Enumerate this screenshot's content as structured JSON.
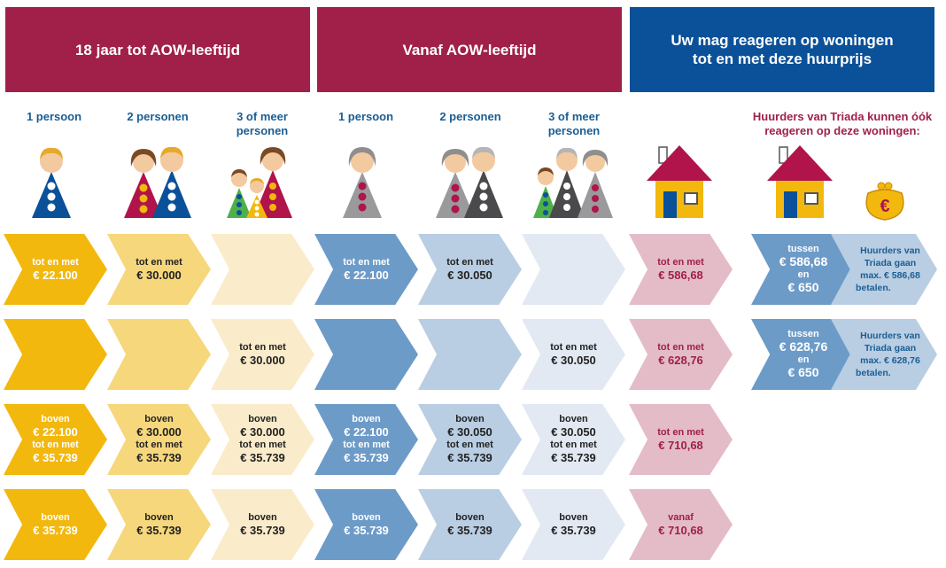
{
  "headers": {
    "group1": "18 jaar tot AOW-leeftijd",
    "group2": "Vanaf AOW-leeftijd",
    "group3_line1": "Uw mag reageren op woningen",
    "group3_line2": "tot en met deze huurprijs"
  },
  "columns": {
    "c0": [
      "1 persoon"
    ],
    "c1": [
      "2 personen"
    ],
    "c2": [
      "3 of meer",
      "personen"
    ],
    "c3": [
      "1 persoon"
    ],
    "c4": [
      "2 personen"
    ],
    "c5": [
      "3 of meer",
      "personen"
    ]
  },
  "triada_note": [
    "Huurders van Triada kunnen óók",
    "reageren op deze woningen:"
  ],
  "icons": {
    "house": "house-icon",
    "purse": "euro-purse-icon",
    "purse_symbol": "€"
  },
  "rows": [
    {
      "cells": [
        {
          "small": "tot en met",
          "big": "€ 22.100"
        },
        {
          "small": "tot en met",
          "big": "€ 30.000"
        },
        {
          "small": "",
          "big": ""
        },
        {
          "small": "tot en met",
          "big": "€ 22.100"
        },
        {
          "small": "tot en met",
          "big": "€ 30.050"
        },
        {
          "small": "",
          "big": ""
        },
        {
          "small": "tot en met",
          "big": "€ 586,68"
        }
      ],
      "extra": {
        "tussen": "tussen",
        "from": "€ 586,68",
        "en": "en",
        "to": "€ 650",
        "note": [
          "Huurders van",
          "Triada gaan",
          "max. € 586,68",
          "betalen."
        ]
      }
    },
    {
      "cells": [
        {
          "small": "",
          "big": ""
        },
        {
          "small": "",
          "big": ""
        },
        {
          "small": "tot en met",
          "big": "€ 30.000"
        },
        {
          "small": "",
          "big": ""
        },
        {
          "small": "",
          "big": ""
        },
        {
          "small": "tot en met",
          "big": "€ 30.050"
        },
        {
          "small": "tot en met",
          "big": "€ 628,76"
        }
      ],
      "extra": {
        "tussen": "tussen",
        "from": "€ 628,76",
        "en": "en",
        "to": "€ 650",
        "note": [
          "Huurders van",
          "Triada gaan",
          "max. € 628,76",
          "betalen."
        ]
      }
    },
    {
      "cells": [
        {
          "l1": "boven",
          "l2": "€ 22.100",
          "l3": "tot en met",
          "l4": "€ 35.739"
        },
        {
          "l1": "boven",
          "l2": "€ 30.000",
          "l3": "tot en met",
          "l4": "€ 35.739"
        },
        {
          "l1": "boven",
          "l2": "€ 30.000",
          "l3": "tot en met",
          "l4": "€ 35.739"
        },
        {
          "l1": "boven",
          "l2": "€ 22.100",
          "l3": "tot en met",
          "l4": "€ 35.739"
        },
        {
          "l1": "boven",
          "l2": "€ 30.050",
          "l3": "tot en met",
          "l4": "€ 35.739"
        },
        {
          "l1": "boven",
          "l2": "€ 30.050",
          "l3": "tot en met",
          "l4": "€ 35.739"
        },
        {
          "small": "tot en met",
          "big": "€ 710,68"
        }
      ]
    },
    {
      "cells": [
        {
          "small": "boven",
          "big": "€ 35.739"
        },
        {
          "small": "boven",
          "big": "€ 35.739"
        },
        {
          "small": "boven",
          "big": "€ 35.739"
        },
        {
          "small": "boven",
          "big": "€ 35.739"
        },
        {
          "small": "boven",
          "big": "€ 35.739"
        },
        {
          "small": "boven",
          "big": "€ 35.739"
        },
        {
          "small": "vanaf",
          "big": "€ 710,68"
        }
      ]
    }
  ],
  "colors": {
    "header_red": "#a0204a",
    "header_blue": "#0a5199",
    "yellow": "#f3b80e",
    "blue": "#6d9bc8",
    "pink": "#e3bcc8"
  }
}
